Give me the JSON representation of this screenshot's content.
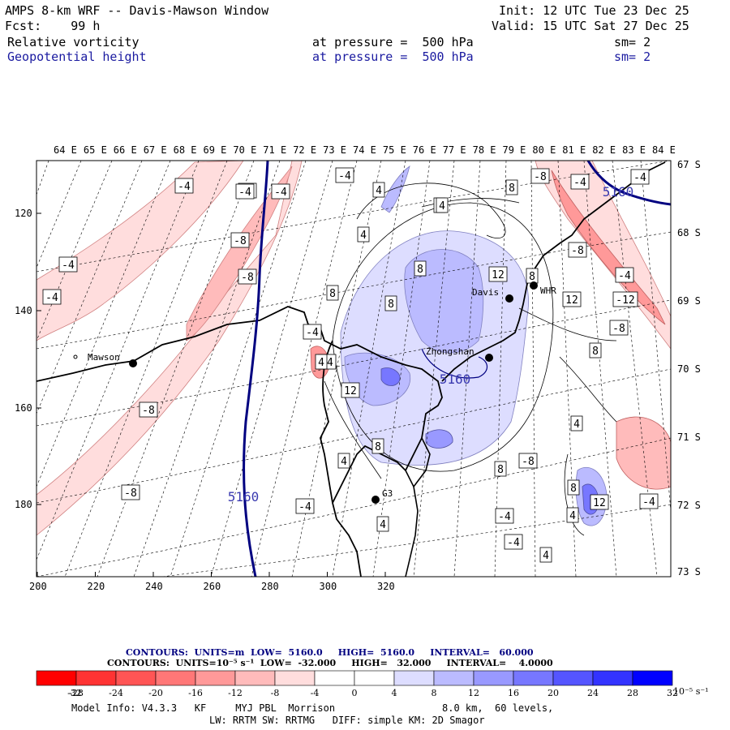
{
  "header": {
    "title": "AMPS 8-km WRF -- Davis-Mawson Window",
    "init": "Init: 12 UTC Tue 23 Dec 25",
    "fcst": "Fcst:    99 h",
    "valid": "Valid: 15 UTC Sat 27 Dec 25",
    "field1": {
      "name": "Relative vorticity",
      "level": "at pressure =  500 hPa",
      "sm": "sm= 2"
    },
    "field2": {
      "name": "Geopotential height",
      "level": "at pressure =  500 hPa",
      "sm": "sm= 2"
    }
  },
  "map": {
    "lon_labels": [
      "64 E",
      "65 E",
      "66 E",
      "67 E",
      "68 E",
      "69 E",
      "70 E",
      "71 E",
      "72 E",
      "73 E",
      "74 E",
      "75 E",
      "76 E",
      "77 E",
      "78 E",
      "79 E",
      "80 E",
      "81 E",
      "82 E",
      "83 E",
      "84 E"
    ],
    "lat_labels": [
      "67 S",
      "68 S",
      "69 S",
      "70 S",
      "71 S",
      "72 S",
      "73 S"
    ],
    "x_ticks": [
      "200",
      "220",
      "240",
      "260",
      "280",
      "300",
      "320"
    ],
    "y_ticks": [
      "120",
      "140",
      "160",
      "180"
    ],
    "stations": [
      {
        "name": "Mawson",
        "marker": "open"
      },
      {
        "name": "Davis",
        "marker": "filled"
      },
      {
        "name": "WHR",
        "marker": "filled"
      },
      {
        "name": "Zhongshan",
        "marker": "filled"
      },
      {
        "name": "G3",
        "marker": "filled"
      }
    ],
    "height_labels": [
      "5160",
      "5160",
      "5160"
    ],
    "vorticity_labels": [
      "-4",
      "-8",
      "-4",
      "-8",
      "-4",
      "-8",
      "-4",
      "-4",
      "-8",
      "-4",
      "-4",
      "-4",
      "-8",
      "-4",
      "-12",
      "-8",
      "-8",
      "-8",
      "-4",
      "-4",
      "-4",
      "-8",
      "-4",
      "-4",
      "-4",
      "4",
      "4",
      "8",
      "4",
      "8",
      "8",
      "12",
      "8",
      "8",
      "12",
      "12",
      "8",
      "8",
      "4",
      "4",
      "8",
      "4",
      "4",
      "4",
      "8",
      "12",
      "4",
      "4"
    ]
  },
  "legend": {
    "contours_height": {
      "label": "CONTOURS:  UNITS=m  LOW=  5160.0     HIGH=  5160.0     INTERVAL=   60.000"
    },
    "contours_vort": {
      "label": "CONTOURS:  UNITS=10⁻⁵ s⁻¹  LOW=  -32.000     HIGH=   32.000     INTERVAL=    4.0000"
    },
    "colorbar_labels": [
      "-32",
      "-28",
      "-24",
      "-20",
      "-16",
      "-12",
      "-8",
      "-4",
      "0",
      "4",
      "8",
      "12",
      "16",
      "20",
      "24",
      "28",
      "32"
    ],
    "colorbar_unit": "10⁻⁵ s⁻¹",
    "colors": [
      "#ff0000",
      "#ff3333",
      "#ff5555",
      "#ff7777",
      "#ff9999",
      "#ffbbbb",
      "#ffdddd",
      "#ffffff",
      "#ffffff",
      "#ddddff",
      "#bbbbff",
      "#9999ff",
      "#7777ff",
      "#5555ff",
      "#3333ff",
      "#0000ff"
    ]
  },
  "footer": {
    "model_info": "Model Info: V4.3.3   KF     MYJ PBL  Morrison",
    "grid": "8.0 km,  60 levels,",
    "physics": "LW: RRTM SW: RRTMG   DIFF: simple KM: 2D Smagor"
  }
}
